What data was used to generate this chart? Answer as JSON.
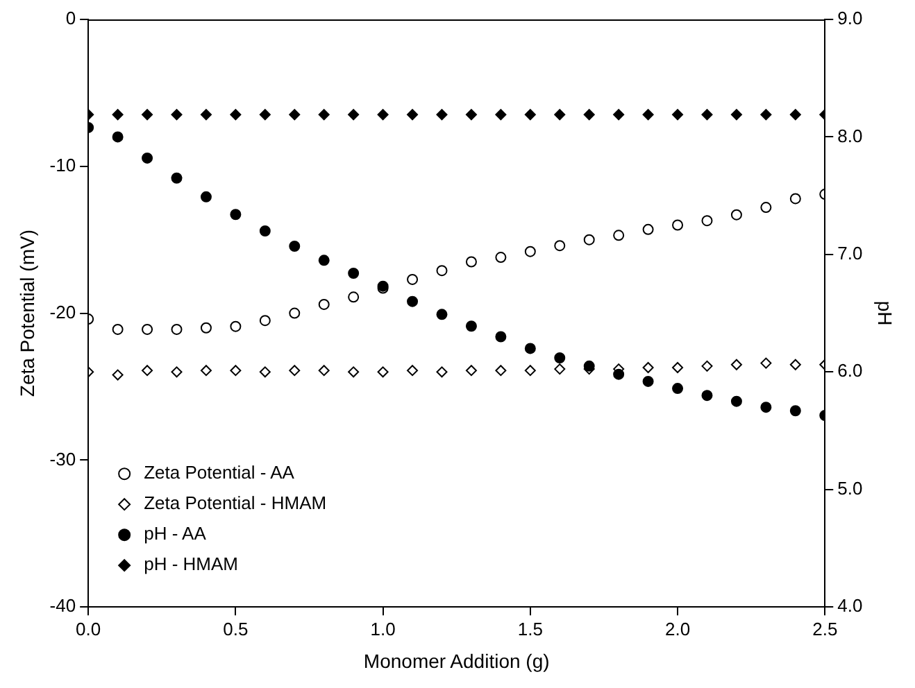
{
  "chart_data": {
    "type": "scatter",
    "xlabel": "Monomer Addition (g)",
    "ylabel": "Zeta Potential (mV)",
    "y2label": "pH",
    "x": [
      0.0,
      0.1,
      0.2,
      0.3,
      0.4,
      0.5,
      0.6,
      0.7,
      0.8,
      0.9,
      1.0,
      1.1,
      1.2,
      1.3,
      1.4,
      1.5,
      1.6,
      1.7,
      1.8,
      1.9,
      2.0,
      2.1,
      2.2,
      2.3,
      2.4,
      2.5
    ],
    "series": [
      {
        "name": "Zeta Potential - AA",
        "color": "#000000",
        "marker": "circle",
        "values": [
          -20.4,
          -21.1,
          -21.1,
          -21.1,
          -21.0,
          -20.9,
          -20.5,
          -20.0,
          -19.4,
          -18.9,
          -18.3,
          -17.7,
          -17.1,
          -16.5,
          -16.2,
          -15.8,
          -15.4,
          -15.0,
          -14.7,
          -14.3,
          -14.0,
          -13.7,
          -13.3,
          -12.8,
          -12.2,
          -11.9
        ]
      },
      {
        "name": "Zeta Potential - HMAM",
        "color": "#000000",
        "marker": "diamond",
        "values": [
          -24.0,
          -24.2,
          -23.9,
          -24.0,
          -23.9,
          -23.9,
          -24.0,
          -23.9,
          -23.9,
          -24.0,
          -24.0,
          -23.9,
          -24.0,
          -23.9,
          -23.9,
          -23.9,
          -23.8,
          -23.8,
          -23.8,
          -23.7,
          -23.7,
          -23.6,
          -23.5,
          -23.4,
          -23.5,
          -23.5
        ]
      },
      {
        "name": "pH - AA",
        "color": "#000000",
        "marker": "circle",
        "axis": "y2",
        "values": [
          8.08,
          8.0,
          7.82,
          7.65,
          7.49,
          7.34,
          7.2,
          7.07,
          6.95,
          6.84,
          6.73,
          6.6,
          6.49,
          6.39,
          6.3,
          6.2,
          6.12,
          6.05,
          5.98,
          5.92,
          5.86,
          5.8,
          5.75,
          5.7,
          5.67,
          5.63
        ]
      },
      {
        "name": "pH - HMAM",
        "color": "#000000",
        "marker": "diamond",
        "axis": "y2",
        "values": [
          8.19,
          8.19,
          8.19,
          8.19,
          8.19,
          8.19,
          8.19,
          8.19,
          8.19,
          8.19,
          8.19,
          8.19,
          8.19,
          8.19,
          8.19,
          8.19,
          8.19,
          8.19,
          8.19,
          8.19,
          8.19,
          8.19,
          8.19,
          8.19,
          8.19,
          8.19
        ]
      }
    ],
    "xlim": [
      0,
      2.5
    ],
    "xticks": [
      {
        "value": 0,
        "label": "0.0"
      },
      {
        "value": 0.5,
        "label": "0.5"
      },
      {
        "value": 1,
        "label": "1.0"
      },
      {
        "value": 1.5,
        "label": "1.5"
      },
      {
        "value": 2,
        "label": "2.0"
      },
      {
        "value": 2.5,
        "label": "2.5"
      }
    ],
    "ylim": [
      -40,
      0
    ],
    "yticks": [
      -40,
      -30,
      -20,
      -10,
      0
    ],
    "y2lim": [
      4,
      9
    ],
    "y2ticks": [
      {
        "value": 4,
        "label": "4.0"
      },
      {
        "value": 5,
        "label": "5.0"
      },
      {
        "value": 6,
        "label": "6.0"
      },
      {
        "value": 7,
        "label": "7.0"
      },
      {
        "value": 8,
        "label": "8.0"
      },
      {
        "value": 9,
        "label": "9.0"
      }
    ],
    "grid": false,
    "legend": "bottom left"
  }
}
